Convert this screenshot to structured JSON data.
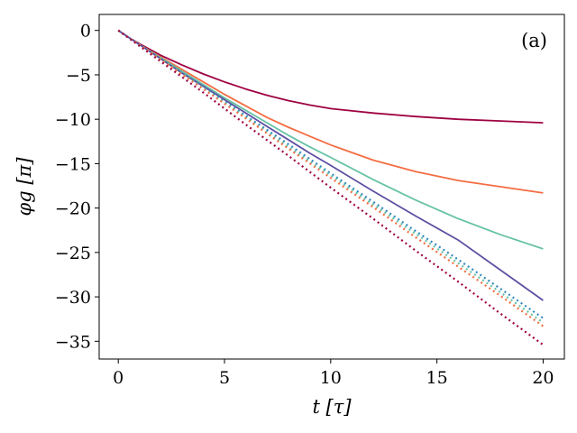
{
  "chart_data": {
    "type": "line",
    "title": "",
    "panel_label": "(a)",
    "xlabel": "t [τ]",
    "ylabel": "φg [π]",
    "xlim": [
      -0.9,
      21.0
    ],
    "ylim": [
      -37.0,
      1.8
    ],
    "xticks": [
      0,
      5,
      10,
      15,
      20
    ],
    "xtick_labels": [
      "0",
      "5",
      "10",
      "15",
      "20"
    ],
    "yticks": [
      0,
      -5,
      -10,
      -15,
      -20,
      -25,
      -30,
      -35
    ],
    "ytick_labels": [
      "0",
      "−5",
      "−10",
      "−15",
      "−20",
      "−25",
      "−30",
      "−35"
    ],
    "grid": false,
    "legend": "none",
    "series": [
      {
        "style": "solid",
        "color": "#9e0142",
        "x": [
          0,
          0.5,
          1,
          2,
          3,
          4,
          5,
          6,
          7,
          8,
          9,
          10,
          12,
          14,
          16,
          18,
          20
        ],
        "y": [
          0,
          -0.8,
          -1.5,
          -2.8,
          -3.9,
          -4.9,
          -5.8,
          -6.6,
          -7.3,
          -7.9,
          -8.4,
          -8.8,
          -9.3,
          -9.7,
          -10.0,
          -10.2,
          -10.4
        ]
      },
      {
        "style": "solid",
        "color": "#f46d43",
        "x": [
          0,
          1,
          2,
          3,
          4,
          5,
          6,
          7,
          8,
          9,
          10,
          12,
          14,
          16,
          18,
          20
        ],
        "y": [
          0,
          -1.6,
          -3.0,
          -4.4,
          -5.8,
          -7.2,
          -8.5,
          -9.8,
          -10.9,
          -11.9,
          -12.9,
          -14.6,
          -15.9,
          -16.9,
          -17.6,
          -18.3
        ]
      },
      {
        "style": "solid",
        "color": "#66c2a5",
        "x": [
          0,
          1,
          2,
          3,
          4,
          5,
          6,
          7,
          8,
          9,
          10,
          12,
          14,
          16,
          18,
          20
        ],
        "y": [
          0,
          -1.6,
          -3.1,
          -4.6,
          -6.1,
          -7.6,
          -9.0,
          -10.4,
          -11.8,
          -13.1,
          -14.3,
          -16.8,
          -19.1,
          -21.2,
          -23.0,
          -24.6
        ]
      },
      {
        "style": "solid",
        "color": "#5e4fa2",
        "x": [
          0,
          1,
          2,
          3,
          4,
          5,
          6,
          7,
          8,
          9,
          10,
          12,
          14,
          16,
          18,
          20
        ],
        "y": [
          0,
          -1.6,
          -3.2,
          -4.8,
          -6.3,
          -7.8,
          -9.3,
          -10.8,
          -12.3,
          -13.8,
          -15.2,
          -18.1,
          -20.9,
          -23.6,
          -27.0,
          -30.4
        ]
      },
      {
        "style": "dotted",
        "color": "#3288bd",
        "x": [
          0,
          2,
          4,
          6,
          8,
          10,
          12,
          14,
          16,
          18,
          20
        ],
        "y": [
          0,
          -3.2,
          -6.4,
          -9.6,
          -12.8,
          -16.1,
          -19.3,
          -22.6,
          -25.8,
          -29.1,
          -32.4
        ]
      },
      {
        "style": "dotted",
        "color": "#66c2a5",
        "x": [
          0,
          2,
          4,
          6,
          8,
          10,
          12,
          14,
          16,
          18,
          20
        ],
        "y": [
          0,
          -3.2,
          -6.5,
          -9.8,
          -13.1,
          -16.3,
          -19.6,
          -22.9,
          -26.2,
          -29.5,
          -32.9
        ]
      },
      {
        "style": "dotted",
        "color": "#f46d43",
        "x": [
          0,
          2,
          4,
          6,
          8,
          10,
          12,
          14,
          16,
          18,
          20
        ],
        "y": [
          0,
          -3.3,
          -6.6,
          -9.9,
          -13.3,
          -16.6,
          -19.9,
          -23.3,
          -26.6,
          -29.9,
          -33.3
        ]
      },
      {
        "style": "dotted",
        "color": "#9e0142",
        "x": [
          0,
          2,
          4,
          6,
          8,
          10,
          12,
          14,
          16,
          18,
          20
        ],
        "y": [
          0,
          -3.5,
          -7.0,
          -10.6,
          -14.1,
          -17.7,
          -21.2,
          -24.8,
          -28.3,
          -31.9,
          -35.4
        ]
      }
    ]
  }
}
